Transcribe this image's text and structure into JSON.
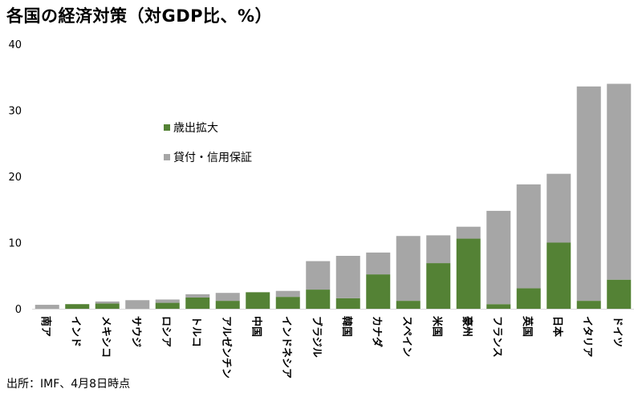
{
  "title": "各国の経済対策（対GDP比、%）",
  "source": "出所：IMF、4月8日時点",
  "chart_data": {
    "type": "bar",
    "stacked": true,
    "title": "各国の経済対策（対GDP比、%）",
    "xlabel": "",
    "ylabel": "",
    "ylim": [
      0,
      40
    ],
    "yticks": [
      0,
      10,
      20,
      30,
      40
    ],
    "grid": false,
    "legend_position": "upper-left (inside plot)",
    "categories": [
      "南ア",
      "インド",
      "メキシコ",
      "サウジ",
      "ロシア",
      "トルコ",
      "アルゼンチン",
      "中国",
      "インドネシア",
      "ブラジル",
      "韓国",
      "カナダ",
      "スペイン",
      "米国",
      "豪州",
      "フランス",
      "英国",
      "日本",
      "イタリア",
      "ドイツ"
    ],
    "series": [
      {
        "name": "歳出拡大",
        "color": "#548235",
        "values": [
          0.0,
          0.7,
          0.8,
          0.0,
          0.9,
          1.7,
          1.2,
          2.5,
          1.8,
          2.9,
          1.6,
          5.2,
          1.2,
          6.9,
          10.6,
          0.7,
          3.1,
          10.0,
          1.2,
          4.4
        ]
      },
      {
        "name": "貸付・信用保証",
        "color": "#a6a6a6",
        "values": [
          0.6,
          0.0,
          0.3,
          1.3,
          0.5,
          0.5,
          1.2,
          0.0,
          0.9,
          4.3,
          6.4,
          3.3,
          9.8,
          4.2,
          1.8,
          14.1,
          15.7,
          10.4,
          32.4,
          29.6
        ]
      }
    ]
  }
}
